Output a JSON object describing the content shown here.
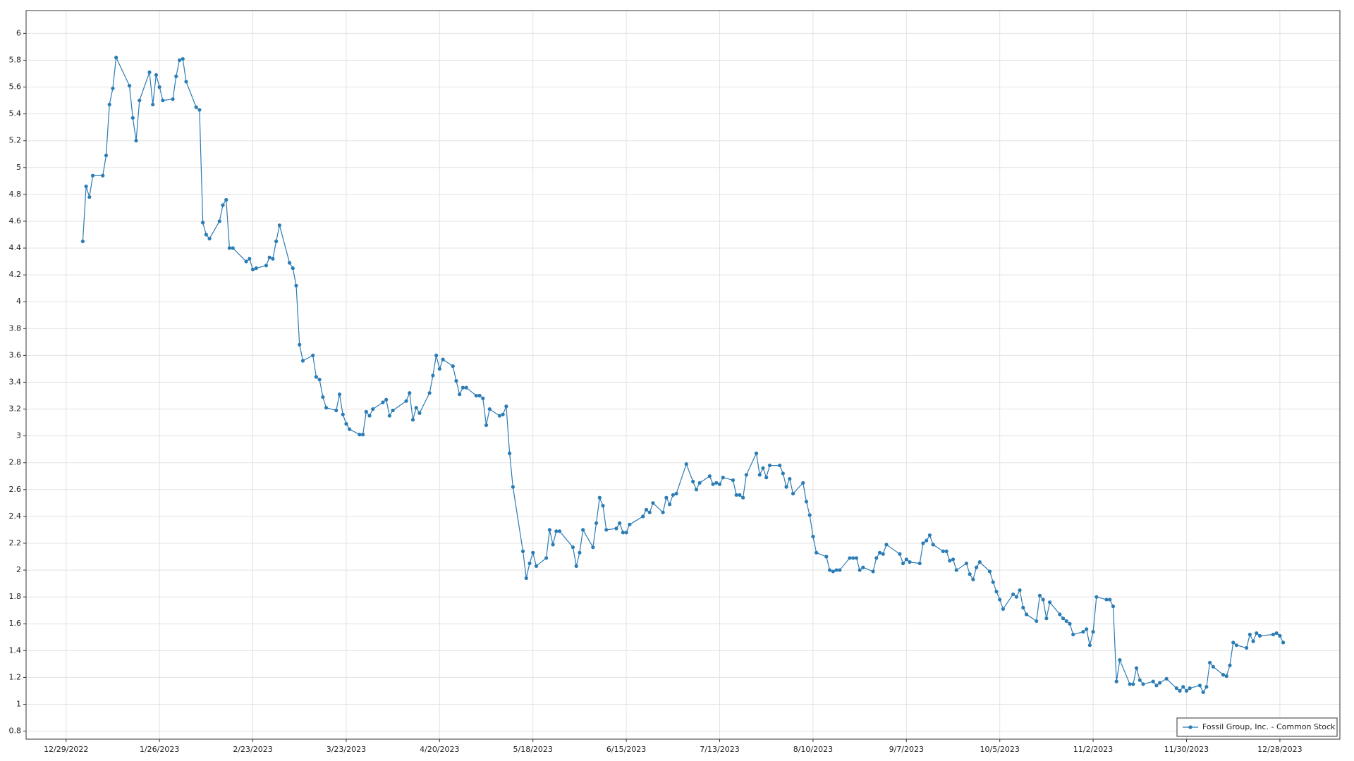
{
  "chart_data": {
    "type": "line",
    "x": [
      "1/3/2023",
      "1/4/2023",
      "1/5/2023",
      "1/6/2023",
      "1/9/2023",
      "1/10/2023",
      "1/11/2023",
      "1/12/2023",
      "1/13/2023",
      "1/17/2023",
      "1/18/2023",
      "1/19/2023",
      "1/20/2023",
      "1/23/2023",
      "1/24/2023",
      "1/25/2023",
      "1/26/2023",
      "1/27/2023",
      "1/30/2023",
      "1/31/2023",
      "2/1/2023",
      "2/2/2023",
      "2/3/2023",
      "2/6/2023",
      "2/7/2023",
      "2/8/2023",
      "2/9/2023",
      "2/10/2023",
      "2/13/2023",
      "2/14/2023",
      "2/15/2023",
      "2/16/2023",
      "2/17/2023",
      "2/21/2023",
      "2/22/2023",
      "2/23/2023",
      "2/24/2023",
      "2/27/2023",
      "2/28/2023",
      "3/1/2023",
      "3/2/2023",
      "3/3/2023",
      "3/6/2023",
      "3/7/2023",
      "3/8/2023",
      "3/9/2023",
      "3/10/2023",
      "3/13/2023",
      "3/14/2023",
      "3/15/2023",
      "3/16/2023",
      "3/17/2023",
      "3/20/2023",
      "3/21/2023",
      "3/22/2023",
      "3/23/2023",
      "3/24/2023",
      "3/27/2023",
      "3/28/2023",
      "3/29/2023",
      "3/30/2023",
      "3/31/2023",
      "4/3/2023",
      "4/4/2023",
      "4/5/2023",
      "4/6/2023",
      "4/10/2023",
      "4/11/2023",
      "4/12/2023",
      "4/13/2023",
      "4/14/2023",
      "4/17/2023",
      "4/18/2023",
      "4/19/2023",
      "4/20/2023",
      "4/21/2023",
      "4/24/2023",
      "4/25/2023",
      "4/26/2023",
      "4/27/2023",
      "4/28/2023",
      "5/1/2023",
      "5/2/2023",
      "5/3/2023",
      "5/4/2023",
      "5/5/2023",
      "5/8/2023",
      "5/9/2023",
      "5/10/2023",
      "5/11/2023",
      "5/12/2023",
      "5/15/2023",
      "5/16/2023",
      "5/17/2023",
      "5/18/2023",
      "5/19/2023",
      "5/22/2023",
      "5/23/2023",
      "5/24/2023",
      "5/25/2023",
      "5/26/2023",
      "5/30/2023",
      "5/31/2023",
      "6/1/2023",
      "6/2/2023",
      "6/5/2023",
      "6/6/2023",
      "6/7/2023",
      "6/8/2023",
      "6/9/2023",
      "6/12/2023",
      "6/13/2023",
      "6/14/2023",
      "6/15/2023",
      "6/16/2023",
      "6/20/2023",
      "6/21/2023",
      "6/22/2023",
      "6/23/2023",
      "6/26/2023",
      "6/27/2023",
      "6/28/2023",
      "6/29/2023",
      "6/30/2023",
      "7/3/2023",
      "7/5/2023",
      "7/6/2023",
      "7/7/2023",
      "7/10/2023",
      "7/11/2023",
      "7/12/2023",
      "7/13/2023",
      "7/14/2023",
      "7/17/2023",
      "7/18/2023",
      "7/19/2023",
      "7/20/2023",
      "7/21/2023",
      "7/24/2023",
      "7/25/2023",
      "7/26/2023",
      "7/27/2023",
      "7/28/2023",
      "7/31/2023",
      "8/1/2023",
      "8/2/2023",
      "8/3/2023",
      "8/4/2023",
      "8/7/2023",
      "8/8/2023",
      "8/9/2023",
      "8/10/2023",
      "8/11/2023",
      "8/14/2023",
      "8/15/2023",
      "8/16/2023",
      "8/17/2023",
      "8/18/2023",
      "8/21/2023",
      "8/22/2023",
      "8/23/2023",
      "8/24/2023",
      "8/25/2023",
      "8/28/2023",
      "8/29/2023",
      "8/30/2023",
      "8/31/2023",
      "9/1/2023",
      "9/5/2023",
      "9/6/2023",
      "9/7/2023",
      "9/8/2023",
      "9/11/2023",
      "9/12/2023",
      "9/13/2023",
      "9/14/2023",
      "9/15/2023",
      "9/18/2023",
      "9/19/2023",
      "9/20/2023",
      "9/21/2023",
      "9/22/2023",
      "9/25/2023",
      "9/26/2023",
      "9/27/2023",
      "9/28/2023",
      "9/29/2023",
      "10/2/2023",
      "10/3/2023",
      "10/4/2023",
      "10/5/2023",
      "10/6/2023",
      "10/9/2023",
      "10/10/2023",
      "10/11/2023",
      "10/12/2023",
      "10/13/2023",
      "10/16/2023",
      "10/17/2023",
      "10/18/2023",
      "10/19/2023",
      "10/20/2023",
      "10/23/2023",
      "10/24/2023",
      "10/25/2023",
      "10/26/2023",
      "10/27/2023",
      "10/30/2023",
      "10/31/2023",
      "11/1/2023",
      "11/2/2023",
      "11/3/2023",
      "11/6/2023",
      "11/7/2023",
      "11/8/2023",
      "11/9/2023",
      "11/10/2023",
      "11/13/2023",
      "11/14/2023",
      "11/15/2023",
      "11/16/2023",
      "11/17/2023",
      "11/20/2023",
      "11/21/2023",
      "11/22/2023",
      "11/24/2023",
      "11/27/2023",
      "11/28/2023",
      "11/29/2023",
      "11/30/2023",
      "12/1/2023",
      "12/4/2023",
      "12/5/2023",
      "12/6/2023",
      "12/7/2023",
      "12/8/2023",
      "12/11/2023",
      "12/12/2023",
      "12/13/2023",
      "12/14/2023",
      "12/15/2023",
      "12/18/2023",
      "12/19/2023",
      "12/20/2023",
      "12/21/2023",
      "12/22/2023",
      "12/26/2023",
      "12/27/2023",
      "12/28/2023",
      "12/29/2023"
    ],
    "series": [
      {
        "name": "Fossil Group, Inc. - Common Stock",
        "color": "#2b7bb4",
        "values": [
          4.45,
          4.86,
          4.78,
          4.94,
          4.94,
          5.09,
          5.47,
          5.59,
          5.82,
          5.61,
          5.37,
          5.2,
          5.5,
          5.71,
          5.47,
          5.69,
          5.6,
          5.5,
          5.51,
          5.68,
          5.8,
          5.81,
          5.64,
          5.45,
          5.43,
          4.59,
          4.5,
          4.47,
          4.6,
          4.72,
          4.76,
          4.4,
          4.4,
          4.3,
          4.32,
          4.24,
          4.25,
          4.27,
          4.33,
          4.32,
          4.45,
          4.57,
          4.29,
          4.25,
          4.12,
          3.68,
          3.56,
          3.6,
          3.44,
          3.42,
          3.29,
          3.21,
          3.19,
          3.31,
          3.16,
          3.09,
          3.05,
          3.01,
          3.01,
          3.18,
          3.15,
          3.2,
          3.25,
          3.27,
          3.15,
          3.19,
          3.26,
          3.32,
          3.12,
          3.21,
          3.17,
          3.32,
          3.45,
          3.6,
          3.5,
          3.57,
          3.52,
          3.41,
          3.31,
          3.36,
          3.36,
          3.3,
          3.3,
          3.28,
          3.08,
          3.2,
          3.15,
          3.16,
          3.22,
          2.87,
          2.62,
          2.14,
          1.94,
          2.05,
          2.13,
          2.03,
          2.09,
          2.3,
          2.19,
          2.29,
          2.29,
          2.17,
          2.03,
          2.13,
          2.3,
          2.17,
          2.35,
          2.54,
          2.48,
          2.3,
          2.31,
          2.35,
          2.28,
          2.28,
          2.34,
          2.4,
          2.45,
          2.43,
          2.5,
          2.43,
          2.54,
          2.49,
          2.56,
          2.57,
          2.79,
          2.66,
          2.6,
          2.65,
          2.7,
          2.64,
          2.65,
          2.64,
          2.69,
          2.67,
          2.56,
          2.56,
          2.54,
          2.71,
          2.87,
          2.71,
          2.76,
          2.69,
          2.78,
          2.78,
          2.72,
          2.62,
          2.68,
          2.57,
          2.65,
          2.51,
          2.41,
          2.25,
          2.13,
          2.1,
          2.0,
          1.99,
          2.0,
          2.0,
          2.09,
          2.09,
          2.09,
          2.0,
          2.02,
          1.99,
          2.09,
          2.13,
          2.12,
          2.19,
          2.12,
          2.05,
          2.08,
          2.06,
          2.05,
          2.2,
          2.22,
          2.26,
          2.19,
          2.14,
          2.14,
          2.07,
          2.08,
          2.0,
          2.05,
          1.97,
          1.93,
          2.02,
          2.06,
          1.99,
          1.91,
          1.84,
          1.78,
          1.71,
          1.82,
          1.8,
          1.85,
          1.72,
          1.67,
          1.62,
          1.81,
          1.78,
          1.64,
          1.76,
          1.67,
          1.64,
          1.62,
          1.6,
          1.52,
          1.54,
          1.56,
          1.44,
          1.54,
          1.8,
          1.78,
          1.78,
          1.73,
          1.17,
          1.33,
          1.15,
          1.15,
          1.27,
          1.18,
          1.15,
          1.17,
          1.14,
          1.16,
          1.19,
          1.12,
          1.1,
          1.13,
          1.1,
          1.12,
          1.14,
          1.09,
          1.13,
          1.31,
          1.28,
          1.22,
          1.21,
          1.29,
          1.46,
          1.44,
          1.42,
          1.52,
          1.47,
          1.53,
          1.51,
          1.52,
          1.53,
          1.51,
          1.46
        ]
      }
    ],
    "xlim": [
      "12/17/2022",
      "1/15/2024"
    ],
    "xticks": [
      "12/29/2022",
      "1/26/2023",
      "2/23/2023",
      "3/23/2023",
      "4/20/2023",
      "5/18/2023",
      "6/15/2023",
      "7/13/2023",
      "8/10/2023",
      "9/7/2023",
      "10/5/2023",
      "11/2/2023",
      "11/30/2023",
      "12/28/2023"
    ],
    "ylim": [
      0.74,
      6.17
    ],
    "yticks": [
      0.8,
      1,
      1.2,
      1.4,
      1.6,
      1.8,
      2,
      2.2,
      2.4,
      2.6,
      2.8,
      3,
      3.2,
      3.4,
      3.6,
      3.8,
      4,
      4.2,
      4.4,
      4.6,
      4.8,
      5,
      5.2,
      5.4,
      5.6,
      5.8,
      6
    ],
    "grid": true,
    "legend": "lower right"
  }
}
